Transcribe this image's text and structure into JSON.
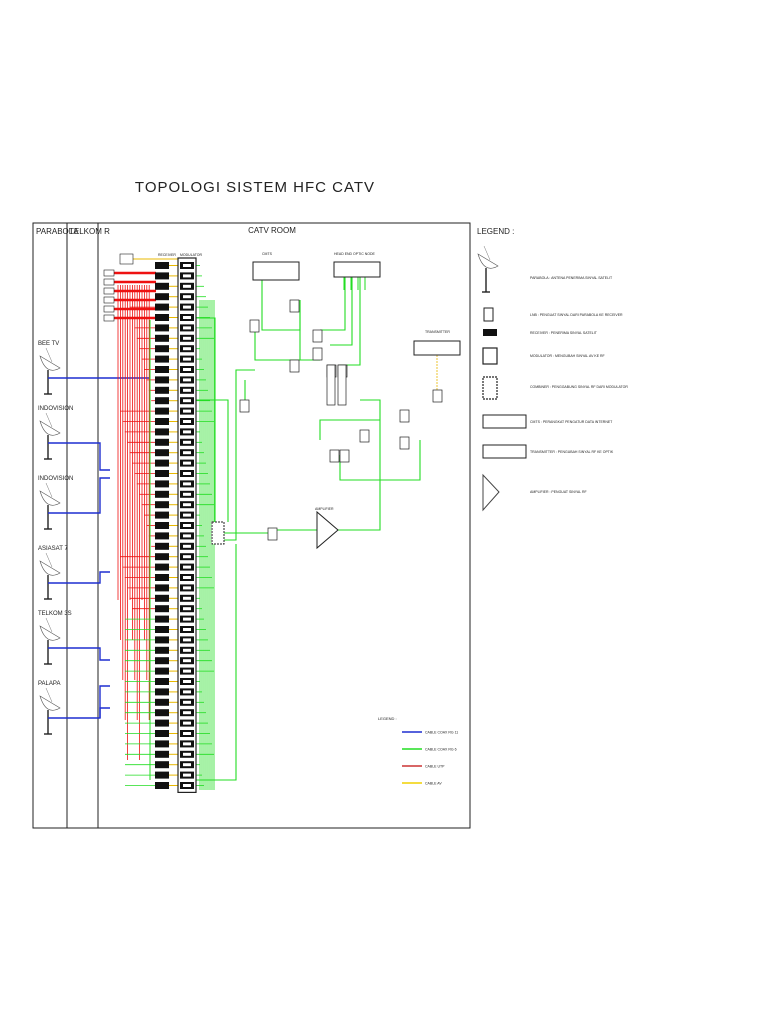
{
  "title": "TOPOLOGI SISTEM HFC CATV",
  "columns": {
    "parabola": "PARABOLA",
    "telkom": "TELKOM R",
    "catv_room": "CATV ROOM"
  },
  "satellites": [
    "BEE TV",
    "INDOVISION",
    "INDOVISION",
    "ASIASAT 7",
    "TELKOM 3S",
    "PALAPA"
  ],
  "rack_labels": {
    "receiver": "RECEIVER",
    "modulator": "MODULATOR",
    "cmts": "CMTS",
    "headend_optic": "HEAD END OPTIC NODE",
    "transmitter": "TRANSMITTER",
    "amplifier": "AMPLIFIER"
  },
  "legend_right": {
    "header": "LEGEND :",
    "items": [
      {
        "icon": "parabola-icon",
        "text": "PARABOLA : ANTENA PENERIMA SINYAL SATELIT"
      },
      {
        "icon": "lnb-icon",
        "text": "LNB : PENGUAT SINYAL DARI PARABOLA KE RECEIVER"
      },
      {
        "icon": "receiver-icon",
        "text": "RECEIVER : PENERIMA SINYAL SATELIT"
      },
      {
        "icon": "modulator-icon",
        "text": "MODULATOR : MENGUBAH SINYAL AV KE RF"
      },
      {
        "icon": "combiner-icon",
        "text": "COMBINER : PENGGABUNG SINYAL RF DARI MODULATOR"
      },
      {
        "icon": "cmts-icon",
        "text": "CMTS : PERANGKAT PENGATUR DATA INTERNET"
      },
      {
        "icon": "transmitter-icon",
        "text": "TRANSMITTER : PENGUBAH SINYAL RF KE OPTIK"
      },
      {
        "icon": "amplifier-icon",
        "text": "AMPLIFIER : PENGUAT SINYAL RF"
      }
    ]
  },
  "legend_cable": {
    "header": "LEGEND :",
    "items": [
      {
        "label": "CABLE COAX RG 11",
        "color": "#1f2fd0"
      },
      {
        "label": "CABLE COAX RG 6",
        "color": "#22dd22"
      },
      {
        "label": "CABLE UTP",
        "color": "#cc3333"
      },
      {
        "label": "CABLE AV",
        "color": "#f0d000"
      }
    ]
  },
  "colors": {
    "coax_rg11": "#1f2fd0",
    "coax_rg6": "#22dd22",
    "utp": "#ee1111",
    "av": "#e8b800"
  }
}
